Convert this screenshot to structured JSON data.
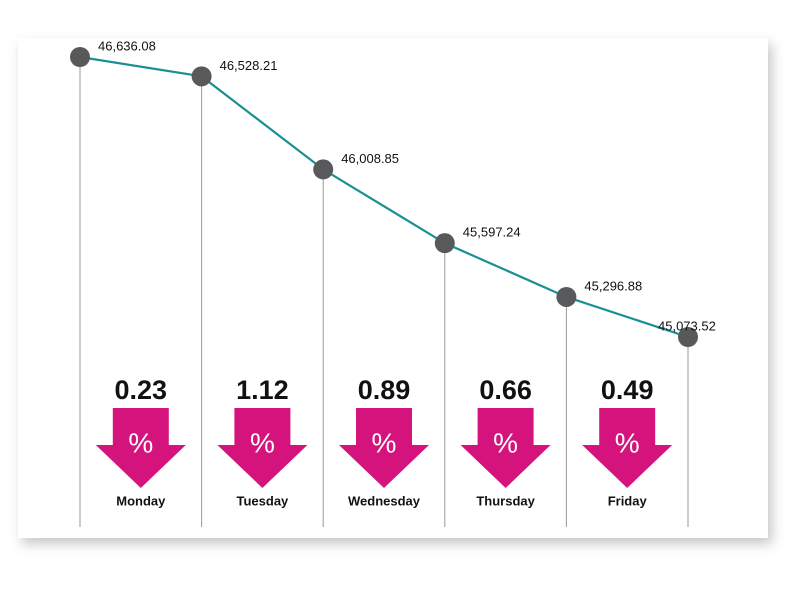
{
  "chart_data": {
    "type": "line",
    "categories": [
      null,
      null,
      null,
      null,
      null,
      null
    ],
    "series": [
      {
        "color": "#1a8f94",
        "values": [
          46636.08,
          46528.21,
          46008.85,
          45597.24,
          45296.88,
          45073.52
        ],
        "value_labels": [
          "46,636.08",
          "46,528.21",
          "46,008.85",
          "45,597.24",
          "45,296.88",
          "45,073.52"
        ]
      }
    ],
    "changes": {
      "categories": [
        "Monday",
        "Tuesday",
        "Wednesday",
        "Thursday",
        "Friday"
      ],
      "values": [
        0.23,
        1.12,
        0.89,
        0.66,
        0.49
      ],
      "symbol": "%",
      "color": "#d4147c"
    }
  }
}
